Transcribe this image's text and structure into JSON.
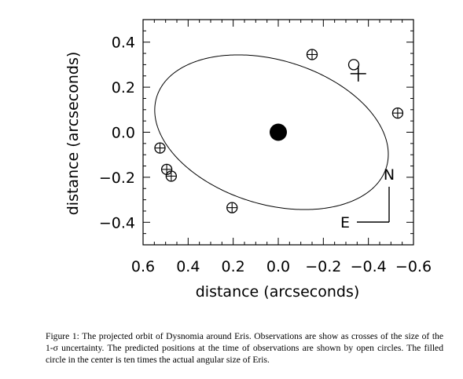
{
  "chart_data": {
    "type": "scatter",
    "xlabel": "distance (arcseconds)",
    "ylabel": "distance (arcseconds)",
    "xlim": [
      0.6,
      -0.6
    ],
    "ylim": [
      -0.5,
      0.5
    ],
    "x_ticks": [
      {
        "value": 0.6,
        "label": "0.6"
      },
      {
        "value": 0.4,
        "label": "0.4"
      },
      {
        "value": 0.2,
        "label": "0.2"
      },
      {
        "value": 0.0,
        "label": "0.0"
      },
      {
        "value": -0.2,
        "label": "−0.2"
      },
      {
        "value": -0.4,
        "label": "−0.4"
      },
      {
        "value": -0.6,
        "label": "−0.6"
      }
    ],
    "y_ticks": [
      {
        "value": 0.4,
        "label": "0.4"
      },
      {
        "value": 0.2,
        "label": "0.2"
      },
      {
        "value": 0.0,
        "label": "0.0"
      },
      {
        "value": -0.2,
        "label": "−0.2"
      },
      {
        "value": -0.4,
        "label": "−0.4"
      }
    ],
    "orbit": {
      "center": [
        0.03,
        0.0
      ],
      "semi_major": 0.533,
      "semi_minor": 0.32,
      "tilt_deg": 17
    },
    "central_body": {
      "x": 0.0,
      "y": 0.0
    },
    "predicted_positions": [
      {
        "x": -0.15,
        "y": 0.345
      },
      {
        "x": -0.335,
        "y": 0.3
      },
      {
        "x": -0.53,
        "y": 0.085
      },
      {
        "x": 0.525,
        "y": -0.07
      },
      {
        "x": 0.495,
        "y": -0.165
      },
      {
        "x": 0.475,
        "y": -0.195
      },
      {
        "x": 0.205,
        "y": -0.335
      }
    ],
    "observations": [
      {
        "x": -0.15,
        "y": 0.345
      },
      {
        "x": -0.355,
        "y": 0.26
      },
      {
        "x": -0.53,
        "y": 0.085
      },
      {
        "x": 0.525,
        "y": -0.07
      },
      {
        "x": 0.495,
        "y": -0.165
      },
      {
        "x": 0.475,
        "y": -0.195
      },
      {
        "x": 0.205,
        "y": -0.335
      }
    ],
    "compass": {
      "north_label": "N",
      "east_label": "E"
    }
  },
  "caption": "Figure 1: The projected orbit of Dysnomia around Eris. Observations are show as crosses of the size of the 1-σ uncertainty. The predicted positions at the time of observations are shown by open circles. The filled circle in the center is ten times the actual angular size of Eris."
}
